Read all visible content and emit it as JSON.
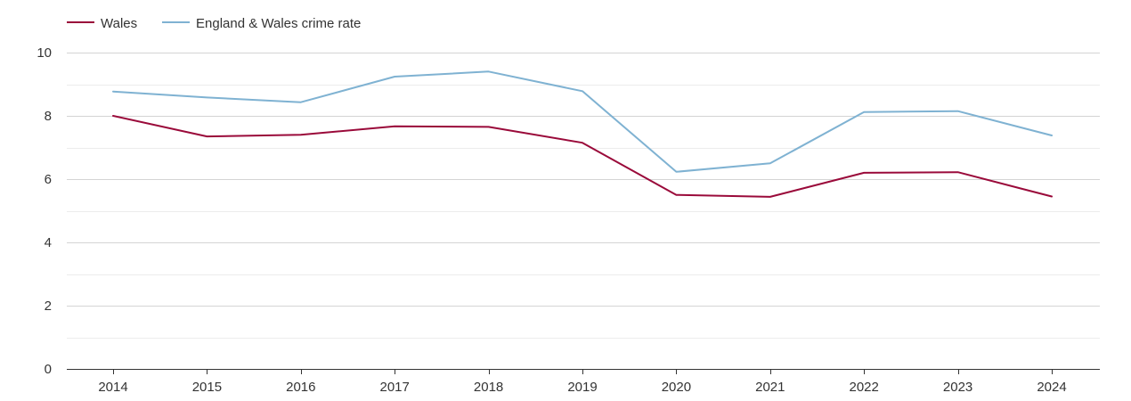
{
  "chart_data": {
    "type": "line",
    "title": "",
    "xlabel": "",
    "ylabel": "",
    "categories": [
      "2014",
      "2015",
      "2016",
      "2017",
      "2018",
      "2019",
      "2020",
      "2021",
      "2022",
      "2023",
      "2024"
    ],
    "ylim": [
      0,
      10
    ],
    "yticks": [
      0,
      2,
      4,
      6,
      8,
      10
    ],
    "grid": true,
    "legend_position": "top-left",
    "series": [
      {
        "name": "Wales",
        "color": "#9a0a3a",
        "values": [
          8.0,
          7.35,
          7.4,
          7.67,
          7.65,
          7.15,
          5.5,
          5.44,
          6.2,
          6.22,
          5.45
        ]
      },
      {
        "name": "England & Wales crime rate",
        "color": "#7fb2d2",
        "values": [
          8.77,
          8.58,
          8.43,
          9.24,
          9.4,
          8.78,
          6.23,
          6.5,
          8.12,
          8.15,
          7.38
        ]
      }
    ]
  }
}
